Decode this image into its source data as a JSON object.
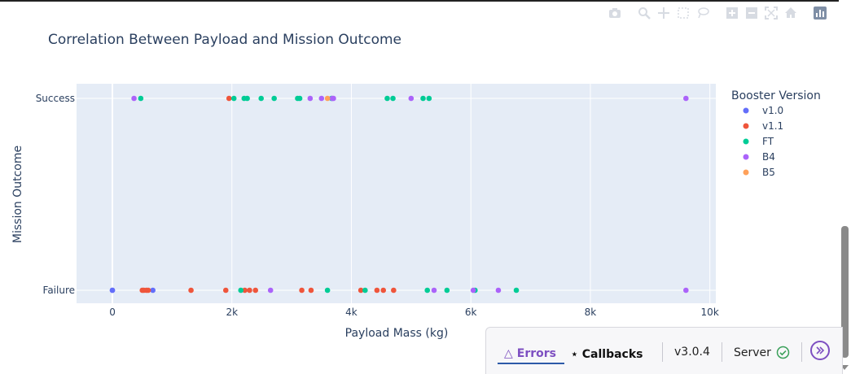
{
  "chart_data": {
    "type": "scatter",
    "title": "Correlation Between Payload and Mission Outcome",
    "xlabel": "Payload Mass (kg)",
    "ylabel": "Mission Outcome",
    "xlim": [
      -600,
      10100
    ],
    "x_ticks": [
      0,
      2000,
      4000,
      6000,
      8000,
      10000
    ],
    "x_tick_labels": [
      "0",
      "2k",
      "4k",
      "6k",
      "8k",
      "10k"
    ],
    "categories": [
      "Failure",
      "Success"
    ],
    "legend_title": "Booster Version",
    "legend_position": "right",
    "grid": true,
    "series": [
      {
        "name": "v1.0",
        "color": "#636efa",
        "points": [
          [
            0,
            "Failure"
          ],
          [
            0,
            "Failure"
          ],
          [
            677,
            "Failure"
          ]
        ]
      },
      {
        "name": "v1.1",
        "color": "#ef553b",
        "points": [
          [
            500,
            "Failure"
          ],
          [
            525,
            "Failure"
          ],
          [
            570,
            "Failure"
          ],
          [
            600,
            "Failure"
          ],
          [
            1316,
            "Failure"
          ],
          [
            1898,
            "Failure"
          ],
          [
            2216,
            "Failure"
          ],
          [
            2296,
            "Failure"
          ],
          [
            2395,
            "Failure"
          ],
          [
            3170,
            "Failure"
          ],
          [
            3325,
            "Failure"
          ],
          [
            4159,
            "Failure"
          ],
          [
            4428,
            "Failure"
          ],
          [
            4535,
            "Failure"
          ],
          [
            4707,
            "Failure"
          ],
          [
            1952,
            "Success"
          ]
        ]
      },
      {
        "name": "FT",
        "color": "#00cc96",
        "points": [
          [
            2150,
            "Failure"
          ],
          [
            3600,
            "Failure"
          ],
          [
            4230,
            "Failure"
          ],
          [
            5271,
            "Failure"
          ],
          [
            5600,
            "Failure"
          ],
          [
            6070,
            "Failure"
          ],
          [
            6761,
            "Failure"
          ],
          [
            475,
            "Success"
          ],
          [
            2034,
            "Success"
          ],
          [
            2205,
            "Success"
          ],
          [
            2257,
            "Success"
          ],
          [
            2490,
            "Success"
          ],
          [
            2708,
            "Success"
          ],
          [
            3100,
            "Success"
          ],
          [
            3136,
            "Success"
          ],
          [
            3669,
            "Success"
          ],
          [
            4600,
            "Success"
          ],
          [
            4696,
            "Success"
          ],
          [
            5200,
            "Success"
          ],
          [
            5300,
            "Success"
          ]
        ]
      },
      {
        "name": "B4",
        "color": "#ab63fa",
        "points": [
          [
            2647,
            "Failure"
          ],
          [
            5384,
            "Failure"
          ],
          [
            6040,
            "Failure"
          ],
          [
            6460,
            "Failure"
          ],
          [
            9600,
            "Failure"
          ],
          [
            362,
            "Success"
          ],
          [
            3310,
            "Success"
          ],
          [
            3500,
            "Success"
          ],
          [
            3681,
            "Success"
          ],
          [
            3700,
            "Success"
          ],
          [
            5000,
            "Success"
          ],
          [
            9600,
            "Success"
          ]
        ]
      },
      {
        "name": "B5",
        "color": "#ffa15a",
        "points": [
          [
            3600,
            "Success"
          ]
        ]
      }
    ]
  },
  "devtools": {
    "errors_label": "Errors",
    "callbacks_label": "Callbacks",
    "version": "v3.0.4",
    "server_label": "Server"
  }
}
